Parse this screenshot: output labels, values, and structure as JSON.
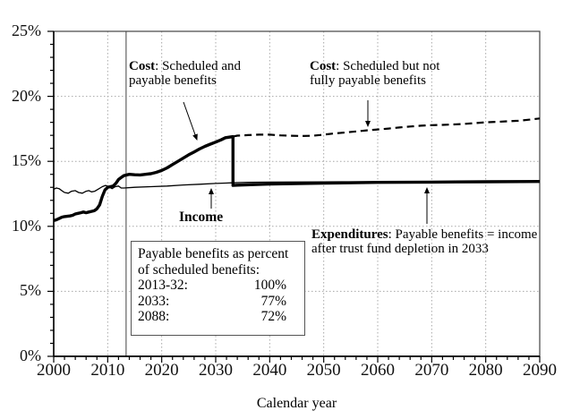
{
  "colors": {
    "line": "#000000",
    "grid": "#a8a8a8",
    "reference": "#808080",
    "frame": "#444444",
    "background": "#ffffff"
  },
  "chart_data": {
    "type": "line",
    "title": "",
    "xlabel": "Calendar year",
    "ylabel": "",
    "xlim": [
      2000,
      2090
    ],
    "ylim": [
      0,
      25
    ],
    "grid": "dotted, on major ticks",
    "reference_year": 2013.4,
    "x_ticks": {
      "minor_step": 2,
      "major": [
        {
          "value": 2000,
          "label": "2000"
        },
        {
          "value": 2010,
          "label": "2010"
        },
        {
          "value": 2020,
          "label": "2020"
        },
        {
          "value": 2030,
          "label": "2030"
        },
        {
          "value": 2040,
          "label": "2040"
        },
        {
          "value": 2050,
          "label": "2050"
        },
        {
          "value": 2060,
          "label": "2060"
        },
        {
          "value": 2070,
          "label": "2070"
        },
        {
          "value": 2080,
          "label": "2080"
        },
        {
          "value": 2090,
          "label": "2090"
        }
      ]
    },
    "y_ticks": {
      "minor_step": 1,
      "major": [
        {
          "value": 0,
          "label": "0%"
        },
        {
          "value": 5,
          "label": "5%"
        },
        {
          "value": 10,
          "label": "10%"
        },
        {
          "value": 15,
          "label": "15%"
        },
        {
          "value": 20,
          "label": "20%"
        },
        {
          "value": 25,
          "label": "25%"
        }
      ]
    },
    "series": [
      {
        "name": "income",
        "label": "Income",
        "style": "thin",
        "points": [
          [
            2000,
            12.85
          ],
          [
            2000.5,
            12.95
          ],
          [
            2001,
            12.9
          ],
          [
            2001.5,
            12.75
          ],
          [
            2002,
            12.6
          ],
          [
            2002.7,
            12.55
          ],
          [
            2003.3,
            12.7
          ],
          [
            2004,
            12.75
          ],
          [
            2004.6,
            12.6
          ],
          [
            2005.3,
            12.55
          ],
          [
            2006,
            12.7
          ],
          [
            2006.5,
            12.75
          ],
          [
            2007,
            12.65
          ],
          [
            2007.6,
            12.7
          ],
          [
            2008.2,
            12.85
          ],
          [
            2009,
            13.05
          ],
          [
            2009.6,
            13.15
          ],
          [
            2010.2,
            13.05
          ],
          [
            2010.8,
            12.9
          ],
          [
            2011.4,
            13.05
          ],
          [
            2012,
            13.1
          ],
          [
            2012.5,
            12.95
          ],
          [
            2013,
            12.95
          ],
          [
            2015,
            13.0
          ],
          [
            2018,
            13.05
          ],
          [
            2021,
            13.1
          ],
          [
            2024,
            13.18
          ],
          [
            2027,
            13.24
          ],
          [
            2030,
            13.3
          ],
          [
            2033,
            13.35
          ],
          [
            2036,
            13.38
          ],
          [
            2040,
            13.4
          ],
          [
            2050,
            13.42
          ],
          [
            2060,
            13.43
          ],
          [
            2070,
            13.44
          ],
          [
            2080,
            13.45
          ],
          [
            2090,
            13.45
          ]
        ]
      },
      {
        "name": "cost-payable",
        "label": "Cost: Scheduled and payable benefits; after 2033 Expenditures: payable benefits",
        "style": "thick",
        "points": [
          [
            2000,
            10.45
          ],
          [
            2000.5,
            10.5
          ],
          [
            2001,
            10.6
          ],
          [
            2001.5,
            10.7
          ],
          [
            2002,
            10.75
          ],
          [
            2003,
            10.8
          ],
          [
            2003.5,
            10.85
          ],
          [
            2004,
            10.95
          ],
          [
            2004.5,
            11.0
          ],
          [
            2005,
            11.05
          ],
          [
            2005.5,
            11.1
          ],
          [
            2006,
            11.05
          ],
          [
            2006.5,
            11.1
          ],
          [
            2007,
            11.15
          ],
          [
            2007.5,
            11.2
          ],
          [
            2008,
            11.35
          ],
          [
            2008.5,
            11.65
          ],
          [
            2009,
            12.3
          ],
          [
            2009.5,
            12.8
          ],
          [
            2010,
            13.0
          ],
          [
            2010.5,
            13.05
          ],
          [
            2011,
            13.1
          ],
          [
            2011.5,
            13.3
          ],
          [
            2012,
            13.6
          ],
          [
            2012.5,
            13.75
          ],
          [
            2013,
            13.9
          ],
          [
            2014,
            14.0
          ],
          [
            2015,
            13.97
          ],
          [
            2016,
            13.95
          ],
          [
            2017,
            14.0
          ],
          [
            2018,
            14.05
          ],
          [
            2019,
            14.15
          ],
          [
            2020,
            14.3
          ],
          [
            2021,
            14.5
          ],
          [
            2022,
            14.75
          ],
          [
            2023,
            15.0
          ],
          [
            2024,
            15.25
          ],
          [
            2025,
            15.5
          ],
          [
            2026,
            15.72
          ],
          [
            2027,
            15.95
          ],
          [
            2028,
            16.15
          ],
          [
            2029,
            16.32
          ],
          [
            2030,
            16.48
          ],
          [
            2031,
            16.65
          ],
          [
            2031.8,
            16.82
          ],
          [
            2033.2,
            16.9
          ],
          [
            2033.2,
            13.15
          ],
          [
            2034,
            13.17
          ],
          [
            2040,
            13.25
          ],
          [
            2050,
            13.32
          ],
          [
            2060,
            13.38
          ],
          [
            2070,
            13.4
          ],
          [
            2080,
            13.43
          ],
          [
            2090,
            13.45
          ]
        ]
      },
      {
        "name": "cost-scheduled",
        "label": "Cost: Scheduled but not fully payable benefits",
        "style": "dashed",
        "points": [
          [
            2033.2,
            16.9
          ],
          [
            2034,
            16.98
          ],
          [
            2036,
            17.02
          ],
          [
            2038,
            17.05
          ],
          [
            2040,
            17.05
          ],
          [
            2042,
            17.0
          ],
          [
            2044,
            16.97
          ],
          [
            2046,
            16.95
          ],
          [
            2048,
            16.97
          ],
          [
            2050,
            17.05
          ],
          [
            2052,
            17.15
          ],
          [
            2054,
            17.22
          ],
          [
            2056,
            17.3
          ],
          [
            2058,
            17.38
          ],
          [
            2060,
            17.45
          ],
          [
            2062,
            17.52
          ],
          [
            2064,
            17.6
          ],
          [
            2066,
            17.68
          ],
          [
            2068,
            17.74
          ],
          [
            2070,
            17.78
          ],
          [
            2072,
            17.8
          ],
          [
            2074,
            17.84
          ],
          [
            2076,
            17.88
          ],
          [
            2078,
            17.94
          ],
          [
            2080,
            18.0
          ],
          [
            2082,
            18.04
          ],
          [
            2084,
            18.08
          ],
          [
            2086,
            18.12
          ],
          [
            2088,
            18.2
          ],
          [
            2090,
            18.3
          ]
        ]
      }
    ]
  },
  "annotations": {
    "cost_payable": {
      "lead": "Cost",
      "rest": ": Scheduled and\npayable benefits"
    },
    "cost_scheduled": {
      "lead": "Cost",
      "rest": ": Scheduled but not\nfully payable benefits"
    },
    "income": {
      "label": "Income"
    },
    "expenditures": {
      "lead": "Expenditures",
      "rest": ": Payable benefits = income\nafter trust fund depletion in 2033"
    }
  },
  "info_box": {
    "line1": "Payable benefits as percent",
    "line2": "of scheduled benefits:",
    "rows": [
      {
        "label": "2013-32:",
        "value": "100%"
      },
      {
        "label": "2033:",
        "value": "77%"
      },
      {
        "label": "2088:",
        "value": "72%"
      }
    ]
  }
}
